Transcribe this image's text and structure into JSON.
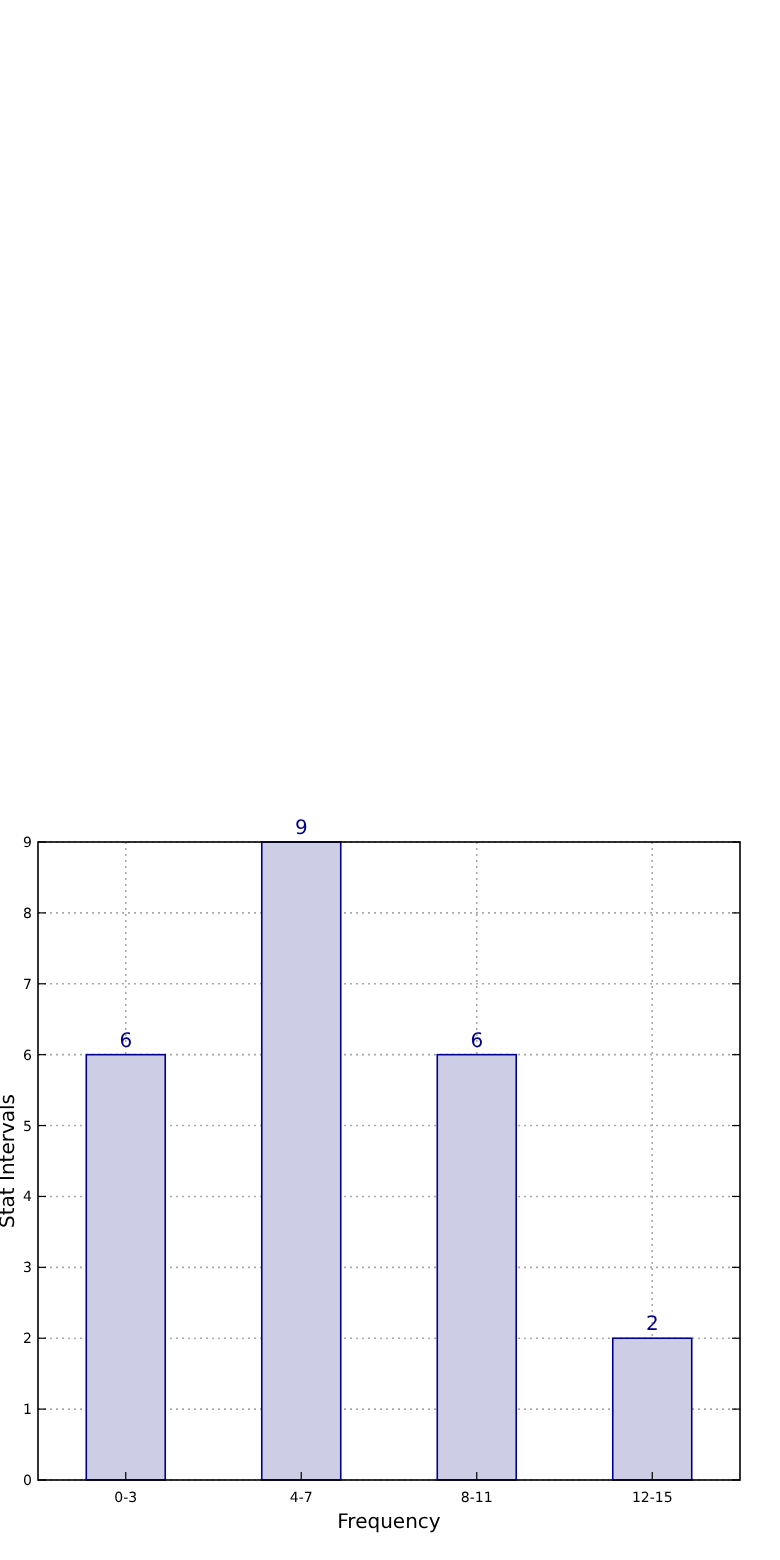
{
  "chart_data": {
    "type": "bar",
    "xlabel": "Frequency",
    "ylabel": "Stat Intervals",
    "categories": [
      "0-3",
      "4-7",
      "8-11",
      "12-15"
    ],
    "values": [
      6,
      9,
      6,
      2
    ],
    "color": "#cdcde6",
    "ylim": [
      0,
      9
    ],
    "yticks": [
      0,
      1,
      2,
      3,
      4,
      5,
      6,
      7,
      8,
      9
    ],
    "grid": true,
    "data_labels": true
  }
}
